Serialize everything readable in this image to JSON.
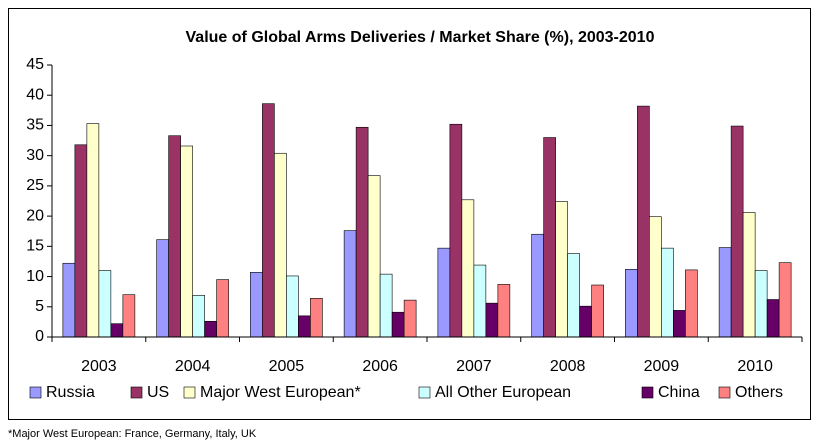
{
  "chart_data": {
    "type": "bar",
    "title": "Value of Global Arms Deliveries / Market Share (%), 2003-2010",
    "note": "*Major West European: France, Germany, Italy, UK",
    "categories": [
      "2003",
      "2004",
      "2005",
      "2006",
      "2007",
      "2008",
      "2009",
      "2010"
    ],
    "series": [
      {
        "name": "Russia",
        "color": "#9999ff",
        "values": [
          12.2,
          16.1,
          10.7,
          17.6,
          14.7,
          17.0,
          11.2,
          14.8
        ]
      },
      {
        "name": "US",
        "color": "#993366",
        "values": [
          31.8,
          33.3,
          38.6,
          34.7,
          35.2,
          33.0,
          38.2,
          34.9
        ]
      },
      {
        "name": "Major West European*",
        "color": "#ffffcc",
        "values": [
          35.3,
          31.6,
          30.4,
          26.7,
          22.7,
          22.4,
          19.9,
          20.6
        ]
      },
      {
        "name": "All Other European",
        "color": "#ccffff",
        "values": [
          11.0,
          6.9,
          10.1,
          10.4,
          11.9,
          13.8,
          14.7,
          11.0
        ]
      },
      {
        "name": "China",
        "color": "#660066",
        "values": [
          2.2,
          2.6,
          3.5,
          4.1,
          5.6,
          5.1,
          4.4,
          6.2
        ]
      },
      {
        "name": "Others",
        "color": "#ff8080",
        "values": [
          7.0,
          9.5,
          6.4,
          6.1,
          8.7,
          8.6,
          11.1,
          12.3
        ]
      }
    ],
    "ylim": [
      0,
      45
    ],
    "yticks": [
      0,
      5,
      10,
      15,
      20,
      25,
      30,
      35,
      40,
      45
    ],
    "grid": false,
    "legend": "bottom"
  }
}
